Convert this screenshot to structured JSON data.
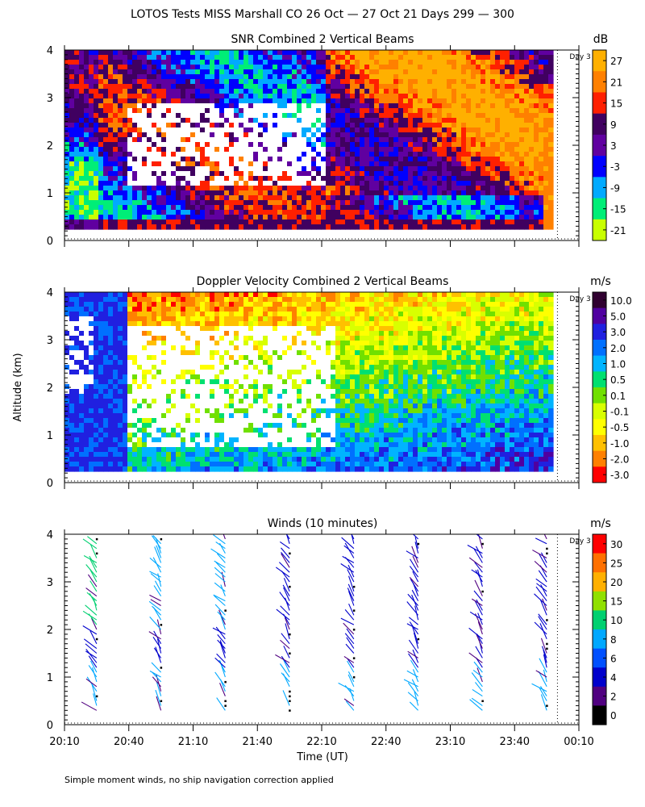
{
  "figure": {
    "title": "LOTOS Tests MISS Marshall CO  26 Oct — 27 Oct 21 Days 299 — 300",
    "ylabel": "Altitude (km)",
    "xlabel": "Time (UT)",
    "day_marker": "Day 3",
    "footnote": "Simple moment winds, no ship navigation correction applied"
  },
  "chart_data": [
    {
      "type": "heatmap",
      "title": "SNR Combined 2 Vertical Beams",
      "colorbar_unit": "dB",
      "colorbar_ticks": [
        "27",
        "21",
        "15",
        "9",
        "3",
        "-3",
        "-9",
        "-15",
        "-21"
      ],
      "colorbar_colors": [
        "#ffb000",
        "#ff8000",
        "#ff2000",
        "#400060",
        "#6000a0",
        "#0000ff",
        "#00aaff",
        "#00ee77",
        "#c8ff00"
      ],
      "xlim": [
        "20:10",
        "00:10"
      ],
      "ylim": [
        0,
        4
      ],
      "xticks": [
        "20:10",
        "20:40",
        "21:10",
        "21:40",
        "22:10",
        "22:40",
        "23:10",
        "23:40",
        "00:10"
      ],
      "yticks": [
        "0",
        "1",
        "2",
        "3",
        "4"
      ]
    },
    {
      "type": "heatmap",
      "title": "Doppler Velocity Combined 2 Vertical Beams",
      "colorbar_unit": "m/s",
      "colorbar_ticks": [
        "10.0",
        "5.0",
        "3.0",
        "2.0",
        "1.0",
        "0.5",
        "0.1",
        "-0.1",
        "-0.5",
        "-1.0",
        "-2.0",
        "-3.0"
      ],
      "colorbar_colors": [
        "#300030",
        "#5000a0",
        "#2020e0",
        "#0070ff",
        "#00b4ff",
        "#00e070",
        "#70e000",
        "#d8ff00",
        "#ffff00",
        "#ffc000",
        "#ff8000",
        "#ff0000"
      ],
      "xlim": [
        "20:10",
        "00:10"
      ],
      "ylim": [
        0,
        4
      ],
      "xticks": [
        "20:10",
        "20:40",
        "21:10",
        "21:40",
        "22:10",
        "22:40",
        "23:10",
        "23:40",
        "00:10"
      ],
      "yticks": [
        "0",
        "1",
        "2",
        "3",
        "4"
      ]
    },
    {
      "type": "scatter",
      "title": "Winds (10 minutes)",
      "colorbar_unit": "m/s",
      "colorbar_ticks": [
        "30",
        "25",
        "20",
        "15",
        "10",
        "8",
        "6",
        "4",
        "2",
        "0"
      ],
      "colorbar_colors": [
        "#ff0000",
        "#ff7000",
        "#ffb000",
        "#90e000",
        "#00d070",
        "#00a8ff",
        "#0050ff",
        "#0000cc",
        "#500080",
        "#000000"
      ],
      "profile_times": [
        "20:25",
        "20:55",
        "21:25",
        "21:55",
        "22:25",
        "22:55",
        "23:25",
        "23:55"
      ],
      "xlim": [
        "20:10",
        "00:10"
      ],
      "ylim": [
        0,
        4
      ],
      "xticks": [
        "20:10",
        "20:40",
        "21:10",
        "21:40",
        "22:10",
        "22:40",
        "23:10",
        "23:40",
        "00:10"
      ],
      "yticks": [
        "0",
        "1",
        "2",
        "3",
        "4"
      ]
    }
  ]
}
